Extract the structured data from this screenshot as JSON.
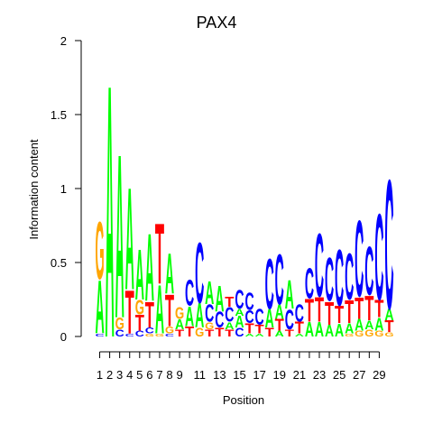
{
  "chart_data": {
    "type": "sequence-logo",
    "title": "PAX4",
    "xlabel": "Position",
    "ylabel": "Information content",
    "ylim": [
      0,
      2
    ],
    "yticks": [
      "0",
      "0.5",
      "1",
      "1.5",
      "2"
    ],
    "ytick_values": [
      0,
      0.5,
      1,
      1.5,
      2
    ],
    "xticks": [
      "1",
      "2",
      "3",
      "4",
      "5",
      "6",
      "7",
      "8",
      "9",
      "11",
      "13",
      "15",
      "17",
      "19",
      "21",
      "23",
      "25",
      "27",
      "29"
    ],
    "xtick_positions": [
      1,
      2,
      3,
      4,
      5,
      6,
      7,
      8,
      9,
      11,
      13,
      15,
      17,
      19,
      21,
      23,
      25,
      27,
      29
    ],
    "num_positions": 30,
    "colors": {
      "A": "#00ff00",
      "C": "#0000ff",
      "G": "#ffa500",
      "T": "#ff0000"
    },
    "positions": [
      {
        "pos": 1,
        "letters": [
          [
            "C",
            0.02
          ],
          [
            "A",
            0.37
          ],
          [
            "G",
            0.4
          ]
        ]
      },
      {
        "pos": 2,
        "letters": [
          [
            "A",
            1.76
          ]
        ]
      },
      {
        "pos": 3,
        "letters": [
          [
            "C",
            0.05
          ],
          [
            "G",
            0.08
          ],
          [
            "A",
            1.14
          ]
        ]
      },
      {
        "pos": 4,
        "letters": [
          [
            "C",
            0.02
          ],
          [
            "T",
            0.3
          ],
          [
            "A",
            0.71
          ]
        ]
      },
      {
        "pos": 5,
        "letters": [
          [
            "C",
            0.04
          ],
          [
            "T",
            0.11
          ],
          [
            "G",
            0.1
          ],
          [
            "A",
            0.35
          ]
        ]
      },
      {
        "pos": 6,
        "letters": [
          [
            "G",
            0.02
          ],
          [
            "C",
            0.04
          ],
          [
            "T",
            0.18
          ],
          [
            "A",
            0.47
          ]
        ]
      },
      {
        "pos": 7,
        "letters": [
          [
            "G",
            0.02
          ],
          [
            "A",
            0.34
          ],
          [
            "T",
            0.42
          ]
        ]
      },
      {
        "pos": 8,
        "letters": [
          [
            "C",
            0.02
          ],
          [
            "G",
            0.05
          ],
          [
            "T",
            0.22
          ],
          [
            "A",
            0.28
          ]
        ]
      },
      {
        "pos": 9,
        "letters": [
          [
            "T",
            0.05
          ],
          [
            "A",
            0.07
          ],
          [
            "G",
            0.08
          ]
        ]
      },
      {
        "pos": 10,
        "letters": [
          [
            "T",
            0.07
          ],
          [
            "A",
            0.14
          ],
          [
            "C",
            0.18
          ]
        ]
      },
      {
        "pos": 11,
        "letters": [
          [
            "G",
            0.06
          ],
          [
            "A",
            0.17
          ],
          [
            "C",
            0.42
          ]
        ]
      },
      {
        "pos": 12,
        "letters": [
          [
            "T",
            0.05
          ],
          [
            "G",
            0.05
          ],
          [
            "C",
            0.12
          ],
          [
            "A",
            0.16
          ]
        ]
      },
      {
        "pos": 13,
        "letters": [
          [
            "T",
            0.06
          ],
          [
            "C",
            0.11
          ],
          [
            "A",
            0.18
          ]
        ]
      },
      {
        "pos": 14,
        "letters": [
          [
            "T",
            0.05
          ],
          [
            "A",
            0.05
          ],
          [
            "C",
            0.1
          ],
          [
            "T",
            0.07
          ]
        ]
      },
      {
        "pos": 15,
        "letters": [
          [
            "C",
            0.06
          ],
          [
            "A",
            0.08
          ],
          [
            "A",
            0.05
          ],
          [
            "C",
            0.13
          ]
        ]
      },
      {
        "pos": 16,
        "letters": [
          [
            "A",
            0.02
          ],
          [
            "T",
            0.07
          ],
          [
            "C",
            0.09
          ],
          [
            "C",
            0.12
          ]
        ]
      },
      {
        "pos": 17,
        "letters": [
          [
            "A",
            0.02
          ],
          [
            "T",
            0.06
          ],
          [
            "C",
            0.11
          ]
        ]
      },
      {
        "pos": 18,
        "letters": [
          [
            "T",
            0.06
          ],
          [
            "A",
            0.13
          ],
          [
            "C",
            0.35
          ]
        ]
      },
      {
        "pos": 19,
        "letters": [
          [
            "A",
            0.04
          ],
          [
            "T",
            0.08
          ],
          [
            "A",
            0.1
          ],
          [
            "C",
            0.35
          ]
        ]
      },
      {
        "pos": 20,
        "letters": [
          [
            "T",
            0.05
          ],
          [
            "C",
            0.14
          ],
          [
            "A",
            0.2
          ]
        ]
      },
      {
        "pos": 21,
        "letters": [
          [
            "A",
            0.02
          ],
          [
            "T",
            0.08
          ],
          [
            "C",
            0.12
          ]
        ]
      },
      {
        "pos": 22,
        "letters": [
          [
            "A",
            0.1
          ],
          [
            "T",
            0.16
          ],
          [
            "C",
            0.21
          ]
        ]
      },
      {
        "pos": 23,
        "letters": [
          [
            "A",
            0.1
          ],
          [
            "T",
            0.17
          ],
          [
            "C",
            0.44
          ]
        ]
      },
      {
        "pos": 24,
        "letters": [
          [
            "A",
            0.08
          ],
          [
            "T",
            0.16
          ],
          [
            "C",
            0.3
          ]
        ]
      },
      {
        "pos": 25,
        "letters": [
          [
            "A",
            0.09
          ],
          [
            "T",
            0.12
          ],
          [
            "C",
            0.39
          ]
        ]
      },
      {
        "pos": 26,
        "letters": [
          [
            "G",
            0.02
          ],
          [
            "A",
            0.07
          ],
          [
            "T",
            0.16
          ],
          [
            "C",
            0.32
          ]
        ]
      },
      {
        "pos": 27,
        "letters": [
          [
            "G",
            0.04
          ],
          [
            "A",
            0.08
          ],
          [
            "T",
            0.15
          ],
          [
            "C",
            0.53
          ]
        ]
      },
      {
        "pos": 28,
        "letters": [
          [
            "G",
            0.05
          ],
          [
            "A",
            0.06
          ],
          [
            "T",
            0.17
          ],
          [
            "C",
            0.34
          ]
        ]
      },
      {
        "pos": 29,
        "letters": [
          [
            "G",
            0.04
          ],
          [
            "A",
            0.09
          ],
          [
            "T",
            0.12
          ],
          [
            "C",
            0.6
          ]
        ]
      },
      {
        "pos": 30,
        "letters": [
          [
            "G",
            0.03
          ],
          [
            "T",
            0.08
          ],
          [
            "A",
            0.08
          ],
          [
            "C",
            0.9
          ]
        ]
      }
    ]
  }
}
